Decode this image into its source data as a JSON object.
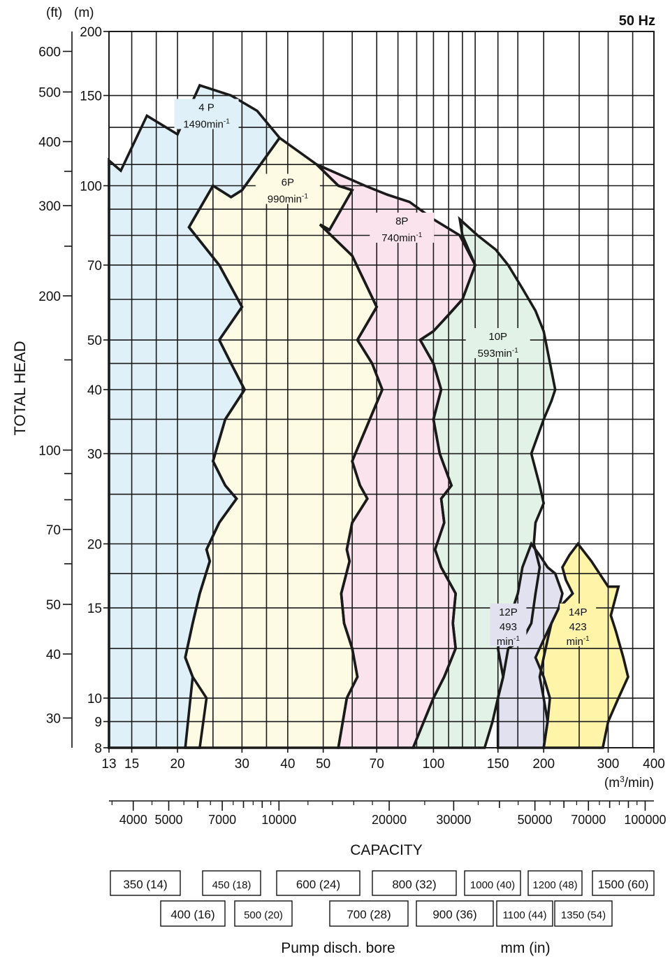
{
  "chart_data": {
    "type": "area",
    "title": "",
    "frequency_label": "50 Hz",
    "unit_ft": "(ft)",
    "unit_m": "(m)",
    "ylabel": "TOTAL HEAD",
    "xlabel": "CAPACITY",
    "x_unit": "(m3/min)",
    "x_scale": "log",
    "y_scale": "log",
    "xlim": [
      13,
      400
    ],
    "ylim": [
      8,
      200
    ],
    "x_ticks": [
      13,
      15,
      20,
      30,
      40,
      50,
      70,
      100,
      150,
      200,
      300,
      400
    ],
    "y_ticks_m": [
      8,
      9,
      10,
      15,
      20,
      30,
      40,
      50,
      70,
      100,
      150,
      200
    ],
    "y_ticks_ft_labeled": [
      30,
      40,
      50,
      70,
      100,
      200,
      300,
      400,
      500,
      600
    ],
    "y_ticks_ft_minor": [
      60,
      80,
      90,
      150,
      250,
      350
    ],
    "x_grid_extra": [
      17.5,
      25,
      35,
      60,
      80,
      90,
      110,
      120,
      130,
      170,
      250,
      350
    ],
    "y_grid_extra": [
      12.5,
      17.5,
      25,
      35,
      45,
      60,
      80,
      90,
      110,
      130
    ],
    "gpm_axis": {
      "labels": [
        4000,
        5000,
        7000,
        10000,
        20000,
        30000,
        50000,
        70000,
        100000
      ],
      "label_texts": [
        "4000",
        "5000",
        "7000",
        "10000",
        "20000",
        "30000",
        "50000",
        "70000",
        "100000"
      ],
      "minor_ticks": [
        6000,
        8000,
        9000,
        40000,
        60000,
        80000,
        90000
      ]
    },
    "series": [
      {
        "name": "4 P",
        "speed": "1490min",
        "color": "#dff0f8",
        "label_at": [
          24,
          140
        ],
        "polygon": [
          [
            13,
            112
          ],
          [
            14,
            107
          ],
          [
            16.5,
            137
          ],
          [
            20,
            126
          ],
          [
            23,
            157
          ],
          [
            28,
            150
          ],
          [
            33,
            140
          ],
          [
            38,
            124
          ],
          [
            30,
            98
          ],
          [
            28,
            95
          ],
          [
            25,
            100
          ],
          [
            21.5,
            83
          ],
          [
            26,
            70
          ],
          [
            30,
            58
          ],
          [
            26,
            50
          ],
          [
            28,
            45
          ],
          [
            30.5,
            40
          ],
          [
            27,
            35
          ],
          [
            25,
            29
          ],
          [
            27,
            26
          ],
          [
            29,
            24.5
          ],
          [
            26,
            22
          ],
          [
            24,
            19.5
          ],
          [
            24.5,
            18.5
          ],
          [
            23,
            16
          ],
          [
            22,
            14
          ],
          [
            21,
            12
          ],
          [
            22,
            11
          ],
          [
            24,
            10
          ],
          [
            23,
            8
          ],
          [
            13,
            8
          ]
        ]
      },
      {
        "name": "6P",
        "speed": "990min",
        "color": "#fefbe5",
        "label_at": [
          40,
          100
        ],
        "polygon": [
          [
            21.5,
            83
          ],
          [
            25,
            100
          ],
          [
            28,
            95
          ],
          [
            30,
            98
          ],
          [
            38,
            124
          ],
          [
            48,
            110
          ],
          [
            55,
            100
          ],
          [
            60,
            98
          ],
          [
            52,
            82
          ],
          [
            49,
            84
          ],
          [
            60,
            73
          ],
          [
            70,
            58
          ],
          [
            62,
            50
          ],
          [
            68,
            45
          ],
          [
            72.5,
            40
          ],
          [
            67,
            35
          ],
          [
            60,
            29
          ],
          [
            63,
            26
          ],
          [
            66,
            24.5
          ],
          [
            60,
            22
          ],
          [
            58,
            19.5
          ],
          [
            59,
            18.5
          ],
          [
            56,
            16
          ],
          [
            57,
            14
          ],
          [
            60,
            12.5
          ],
          [
            62,
            11
          ],
          [
            58,
            10
          ],
          [
            55,
            8
          ],
          [
            21,
            8
          ],
          [
            22,
            11
          ],
          [
            21,
            12
          ],
          [
            22,
            14
          ],
          [
            23,
            16
          ],
          [
            24.5,
            18.5
          ],
          [
            24,
            19.5
          ],
          [
            26,
            22
          ],
          [
            29,
            24.5
          ],
          [
            27,
            26
          ],
          [
            25,
            29
          ],
          [
            27,
            35
          ],
          [
            30.5,
            40
          ],
          [
            28,
            45
          ],
          [
            26,
            50
          ],
          [
            30,
            58
          ],
          [
            26,
            70
          ]
        ]
      },
      {
        "name": "8P",
        "speed": "740min",
        "color": "#fbe3ee",
        "label_at": [
          82,
          84
        ],
        "polygon": [
          [
            49,
            84
          ],
          [
            52,
            82
          ],
          [
            60,
            98
          ],
          [
            55,
            100
          ],
          [
            48,
            110
          ],
          [
            65,
            100
          ],
          [
            75,
            96
          ],
          [
            86,
            93
          ],
          [
            100,
            86
          ],
          [
            118,
            80
          ],
          [
            130,
            70
          ],
          [
            120,
            60
          ],
          [
            110,
            56
          ],
          [
            100,
            52
          ],
          [
            92,
            50
          ],
          [
            100,
            45
          ],
          [
            105,
            40
          ],
          [
            100,
            35
          ],
          [
            104,
            30
          ],
          [
            112,
            26
          ],
          [
            105,
            24.5
          ],
          [
            107,
            22
          ],
          [
            101,
            19.5
          ],
          [
            105,
            18
          ],
          [
            115,
            16
          ],
          [
            113,
            14
          ],
          [
            115,
            12.5
          ],
          [
            107,
            11
          ],
          [
            100,
            10
          ],
          [
            88,
            8
          ],
          [
            55,
            8
          ],
          [
            58,
            10
          ],
          [
            62,
            11
          ],
          [
            60,
            12.5
          ],
          [
            57,
            14
          ],
          [
            56,
            16
          ],
          [
            59,
            18.5
          ],
          [
            58,
            19.5
          ],
          [
            60,
            22
          ],
          [
            66,
            24.5
          ],
          [
            63,
            26
          ],
          [
            60,
            29
          ],
          [
            67,
            35
          ],
          [
            72.5,
            40
          ],
          [
            68,
            45
          ],
          [
            62,
            50
          ],
          [
            70,
            58
          ],
          [
            60,
            73
          ]
        ]
      },
      {
        "name": "10P",
        "speed": "593min",
        "color": "#e3f2e7",
        "label_at": [
          150,
          50
        ],
        "polygon": [
          [
            88,
            8
          ],
          [
            100,
            10
          ],
          [
            107,
            11
          ],
          [
            115,
            12.5
          ],
          [
            113,
            14
          ],
          [
            115,
            16
          ],
          [
            105,
            18
          ],
          [
            101,
            19.5
          ],
          [
            107,
            22
          ],
          [
            105,
            24.5
          ],
          [
            112,
            26
          ],
          [
            104,
            30
          ],
          [
            100,
            35
          ],
          [
            105,
            40
          ],
          [
            100,
            45
          ],
          [
            92,
            50
          ],
          [
            100,
            52
          ],
          [
            110,
            56
          ],
          [
            120,
            60
          ],
          [
            130,
            70
          ],
          [
            120,
            80
          ],
          [
            118,
            86
          ],
          [
            132,
            80
          ],
          [
            148,
            75
          ],
          [
            160,
            70
          ],
          [
            175,
            63
          ],
          [
            190,
            57
          ],
          [
            200,
            52
          ],
          [
            215,
            40
          ],
          [
            210,
            38
          ],
          [
            200,
            35
          ],
          [
            185,
            30
          ],
          [
            195,
            26
          ],
          [
            200,
            24
          ],
          [
            190,
            22
          ],
          [
            188,
            20
          ],
          [
            195,
            18
          ],
          [
            190,
            16
          ],
          [
            185,
            14
          ],
          [
            175,
            13
          ],
          [
            160,
            12.5
          ],
          [
            155,
            11
          ],
          [
            150,
            10
          ],
          [
            145,
            9
          ],
          [
            138,
            8
          ]
        ]
      },
      {
        "name": "12P",
        "speed": "493",
        "color": "#e1e1f0",
        "label_at": [
          160,
          14.5
        ],
        "polygon": [
          [
            150,
            8
          ],
          [
            150,
            10
          ],
          [
            155,
            11
          ],
          [
            150,
            12.5
          ],
          [
            155,
            14
          ],
          [
            165,
            15
          ],
          [
            170,
            16
          ],
          [
            175,
            18
          ],
          [
            185,
            20
          ],
          [
            195,
            19
          ],
          [
            205,
            18
          ],
          [
            215,
            17.5
          ],
          [
            225,
            16
          ],
          [
            220,
            15
          ],
          [
            210,
            14
          ],
          [
            205,
            13
          ],
          [
            200,
            12
          ],
          [
            195,
            11
          ],
          [
            200,
            10
          ],
          [
            205,
            9
          ],
          [
            200,
            8
          ]
        ]
      },
      {
        "name": "14P",
        "speed": "423",
        "color": "#fff4a8",
        "label_at": [
          248,
          14.5
        ],
        "polygon": [
          [
            200,
            8
          ],
          [
            205,
            9
          ],
          [
            208,
            10
          ],
          [
            200,
            11
          ],
          [
            190,
            12
          ],
          [
            200,
            13
          ],
          [
            210,
            14
          ],
          [
            220,
            15
          ],
          [
            240,
            16
          ],
          [
            230,
            17
          ],
          [
            225,
            18
          ],
          [
            235,
            19
          ],
          [
            248,
            20
          ],
          [
            270,
            18.5
          ],
          [
            300,
            16.5
          ],
          [
            320,
            16.5
          ],
          [
            305,
            14.5
          ],
          [
            315,
            13.5
          ],
          [
            330,
            12
          ],
          [
            340,
            11
          ],
          [
            320,
            10
          ],
          [
            300,
            9
          ],
          [
            290,
            8
          ]
        ]
      }
    ],
    "bore_label": "Pump disch. bore",
    "bore_unit": "mm (in)",
    "bore_row1": [
      "350 (14)",
      "450 (18)",
      "600 (24)",
      "800 (32)",
      "1000 (40)",
      "1200 (48)",
      "1500 (60)"
    ],
    "bore_row2": [
      "400 (16)",
      "500 (20)",
      "700 (28)",
      "900 (36)",
      "1100 (44)",
      "1350 (54)"
    ],
    "speed_unit": "min",
    "speed_sup": "-1"
  }
}
